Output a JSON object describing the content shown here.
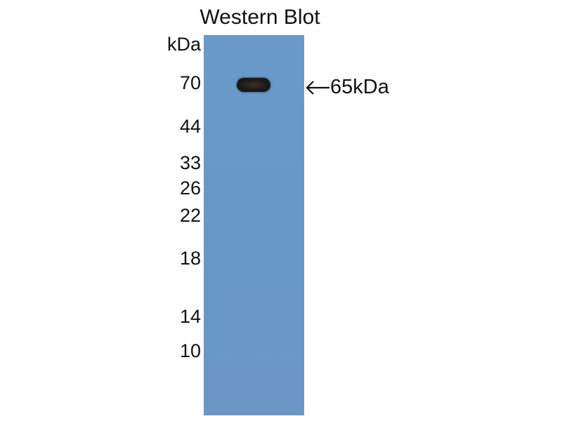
{
  "title": "Western Blot",
  "unit_label": "kDa",
  "markers": [
    "70",
    "44",
    "33",
    "26",
    "22",
    "18",
    "14",
    "10"
  ],
  "band_label": "65kDa",
  "arrow_icon": "left-arrow-icon",
  "colors": {
    "membrane": "#6898c8",
    "band": "#151515"
  }
}
